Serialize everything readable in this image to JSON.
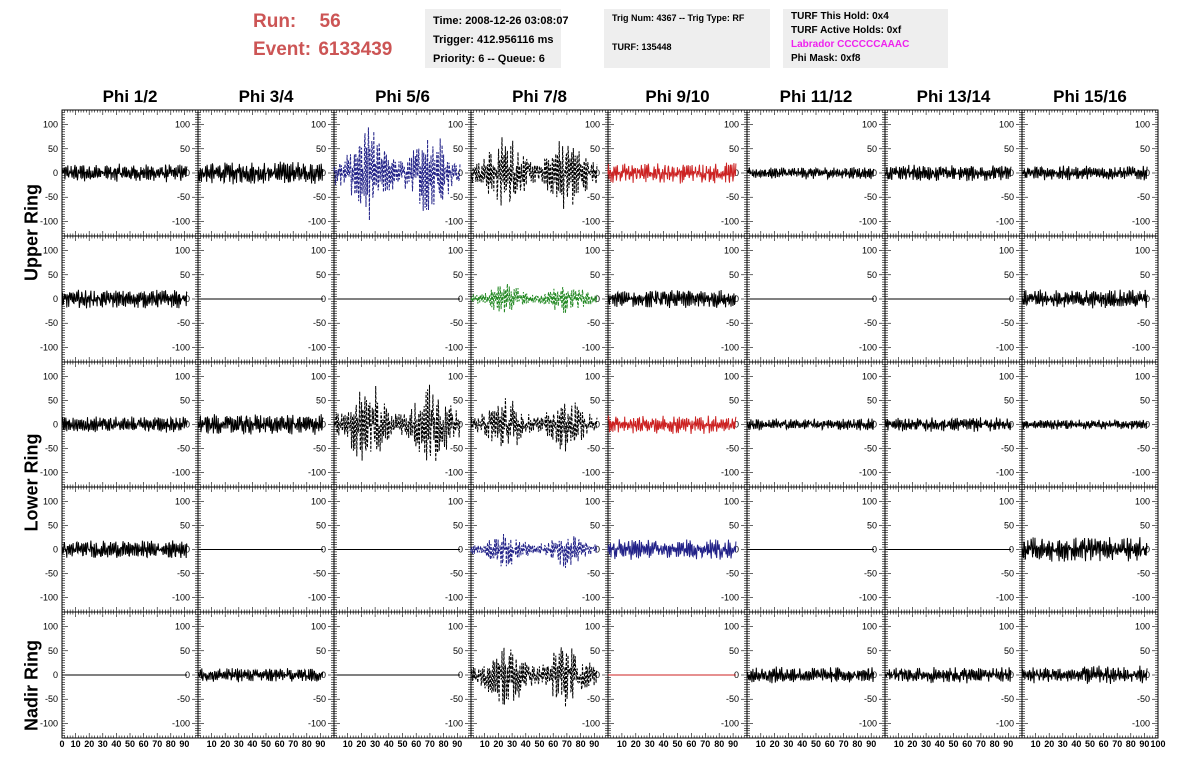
{
  "header": {
    "run_label": "Run:",
    "run_value": "56",
    "event_label": "Event:",
    "event_value": "6133439",
    "time_line": "Time: 2008-12-26 03:08:07",
    "trigger_line": "Trigger: 412.956116 ms",
    "priority_line": "Priority: 6 -- Queue: 6",
    "trig_line": "Trig Num: 4367 -- Trig Type: RF",
    "turf_line": "TURF: 135448",
    "turf_hold_line": "TURF This Hold: 0x4",
    "turf_active_line": "TURF Active Holds: 0xf",
    "labrador_line": "Labrador CCCCCCAAAC",
    "phi_mask_line": "Phi Mask: 0xf8",
    "labrador_color": "#ee22ee",
    "run_color": "#cc5555"
  },
  "columns": [
    "Phi 1/2",
    "Phi 3/4",
    "Phi 5/6",
    "Phi 7/8",
    "Phi 9/10",
    "Phi 11/12",
    "Phi 13/14",
    "Phi 15/16"
  ],
  "ring_labels": [
    "Upper Ring",
    "Lower Ring",
    "Nadir Ring"
  ],
  "chart_data": {
    "type": "line",
    "ylim": [
      -130,
      130
    ],
    "xlim": [
      0,
      100
    ],
    "y_ticks": [
      100,
      50,
      0,
      -50,
      -100
    ],
    "x_ticks": [
      0,
      10,
      20,
      30,
      40,
      50,
      60,
      70,
      80,
      90,
      100
    ],
    "x_tick_labels": [
      "0",
      "10",
      "20",
      "30",
      "40",
      "50",
      "60",
      "70",
      "80",
      "90",
      "10",
      "20",
      "30",
      "40",
      "50",
      "60",
      "70",
      "80",
      "90",
      "10",
      "20",
      "30",
      "40",
      "50",
      "60",
      "70",
      "80",
      "90",
      "10",
      "20",
      "30",
      "40",
      "50",
      "60",
      "70",
      "80",
      "90",
      "10",
      "20",
      "30",
      "40",
      "50",
      "60",
      "70",
      "80",
      "90",
      "10",
      "20",
      "30",
      "40",
      "50",
      "60",
      "70",
      "80",
      "90",
      "10",
      "20",
      "30",
      "40",
      "50",
      "60",
      "70",
      "80",
      "90",
      "10",
      "20",
      "30",
      "40",
      "50",
      "60",
      "70",
      "80",
      "90",
      "100"
    ],
    "waveform_span": [
      0,
      92
    ],
    "panels": [
      {
        "row": 0,
        "col": 0,
        "kind": "noise",
        "amp": 18,
        "color": "#000000",
        "dashed": false
      },
      {
        "row": 0,
        "col": 1,
        "kind": "noise",
        "amp": 22,
        "color": "#000000",
        "dashed": false
      },
      {
        "row": 0,
        "col": 2,
        "kind": "signal",
        "amp": 90,
        "color": "#222288",
        "dashed": true
      },
      {
        "row": 0,
        "col": 3,
        "kind": "signal",
        "amp": 75,
        "color": "#000000",
        "dashed": true
      },
      {
        "row": 0,
        "col": 4,
        "kind": "noise",
        "amp": 20,
        "color": "#cc2222",
        "dashed": false
      },
      {
        "row": 0,
        "col": 5,
        "kind": "noise",
        "amp": 12,
        "color": "#000000",
        "dashed": false
      },
      {
        "row": 0,
        "col": 6,
        "kind": "noise",
        "amp": 16,
        "color": "#000000",
        "dashed": false
      },
      {
        "row": 0,
        "col": 7,
        "kind": "noise",
        "amp": 14,
        "color": "#000000",
        "dashed": false
      },
      {
        "row": 1,
        "col": 0,
        "kind": "noise",
        "amp": 18,
        "color": "#000000",
        "dashed": false
      },
      {
        "row": 1,
        "col": 1,
        "kind": "flat",
        "amp": 0,
        "color": "#000000",
        "dashed": false
      },
      {
        "row": 1,
        "col": 2,
        "kind": "flat",
        "amp": 0,
        "color": "#000000",
        "dashed": false
      },
      {
        "row": 1,
        "col": 3,
        "kind": "signal",
        "amp": 30,
        "color": "#228822",
        "dashed": true
      },
      {
        "row": 1,
        "col": 4,
        "kind": "noise",
        "amp": 18,
        "color": "#000000",
        "dashed": false
      },
      {
        "row": 1,
        "col": 5,
        "kind": "flat",
        "amp": 0,
        "color": "#000000",
        "dashed": false
      },
      {
        "row": 1,
        "col": 6,
        "kind": "flat",
        "amp": 0,
        "color": "#000000",
        "dashed": false
      },
      {
        "row": 1,
        "col": 7,
        "kind": "noise",
        "amp": 18,
        "color": "#000000",
        "dashed": false
      },
      {
        "row": 2,
        "col": 0,
        "kind": "noise",
        "amp": 16,
        "color": "#000000",
        "dashed": false
      },
      {
        "row": 2,
        "col": 1,
        "kind": "noise",
        "amp": 20,
        "color": "#000000",
        "dashed": false
      },
      {
        "row": 2,
        "col": 2,
        "kind": "signal",
        "amp": 85,
        "color": "#000000",
        "dashed": true
      },
      {
        "row": 2,
        "col": 3,
        "kind": "signal",
        "amp": 55,
        "color": "#000000",
        "dashed": true
      },
      {
        "row": 2,
        "col": 4,
        "kind": "noise",
        "amp": 18,
        "color": "#cc2222",
        "dashed": false
      },
      {
        "row": 2,
        "col": 5,
        "kind": "noise",
        "amp": 12,
        "color": "#000000",
        "dashed": false
      },
      {
        "row": 2,
        "col": 6,
        "kind": "noise",
        "amp": 14,
        "color": "#000000",
        "dashed": false
      },
      {
        "row": 2,
        "col": 7,
        "kind": "noise",
        "amp": 10,
        "color": "#000000",
        "dashed": false
      },
      {
        "row": 3,
        "col": 0,
        "kind": "noise",
        "amp": 18,
        "color": "#000000",
        "dashed": false
      },
      {
        "row": 3,
        "col": 1,
        "kind": "flat",
        "amp": 0,
        "color": "#000000",
        "dashed": false
      },
      {
        "row": 3,
        "col": 2,
        "kind": "flat",
        "amp": 0,
        "color": "#000000",
        "dashed": false
      },
      {
        "row": 3,
        "col": 3,
        "kind": "signal",
        "amp": 35,
        "color": "#222288",
        "dashed": true
      },
      {
        "row": 3,
        "col": 4,
        "kind": "noise",
        "amp": 20,
        "color": "#222288",
        "dashed": false
      },
      {
        "row": 3,
        "col": 5,
        "kind": "flat",
        "amp": 0,
        "color": "#000000",
        "dashed": false
      },
      {
        "row": 3,
        "col": 6,
        "kind": "flat",
        "amp": 0,
        "color": "#000000",
        "dashed": false
      },
      {
        "row": 3,
        "col": 7,
        "kind": "noise",
        "amp": 24,
        "color": "#000000",
        "dashed": false
      },
      {
        "row": 4,
        "col": 0,
        "kind": "flat",
        "amp": 0,
        "color": "#000000",
        "dashed": false
      },
      {
        "row": 4,
        "col": 1,
        "kind": "noise",
        "amp": 14,
        "color": "#000000",
        "dashed": false
      },
      {
        "row": 4,
        "col": 2,
        "kind": "flat",
        "amp": 0,
        "color": "#000000",
        "dashed": false
      },
      {
        "row": 4,
        "col": 3,
        "kind": "signal",
        "amp": 65,
        "color": "#000000",
        "dashed": true
      },
      {
        "row": 4,
        "col": 4,
        "kind": "flat",
        "amp": 0,
        "color": "#cc2222",
        "dashed": false
      },
      {
        "row": 4,
        "col": 5,
        "kind": "noise",
        "amp": 16,
        "color": "#000000",
        "dashed": false
      },
      {
        "row": 4,
        "col": 6,
        "kind": "noise",
        "amp": 16,
        "color": "#000000",
        "dashed": false
      },
      {
        "row": 4,
        "col": 7,
        "kind": "noise",
        "amp": 18,
        "color": "#000000",
        "dashed": false
      }
    ]
  }
}
